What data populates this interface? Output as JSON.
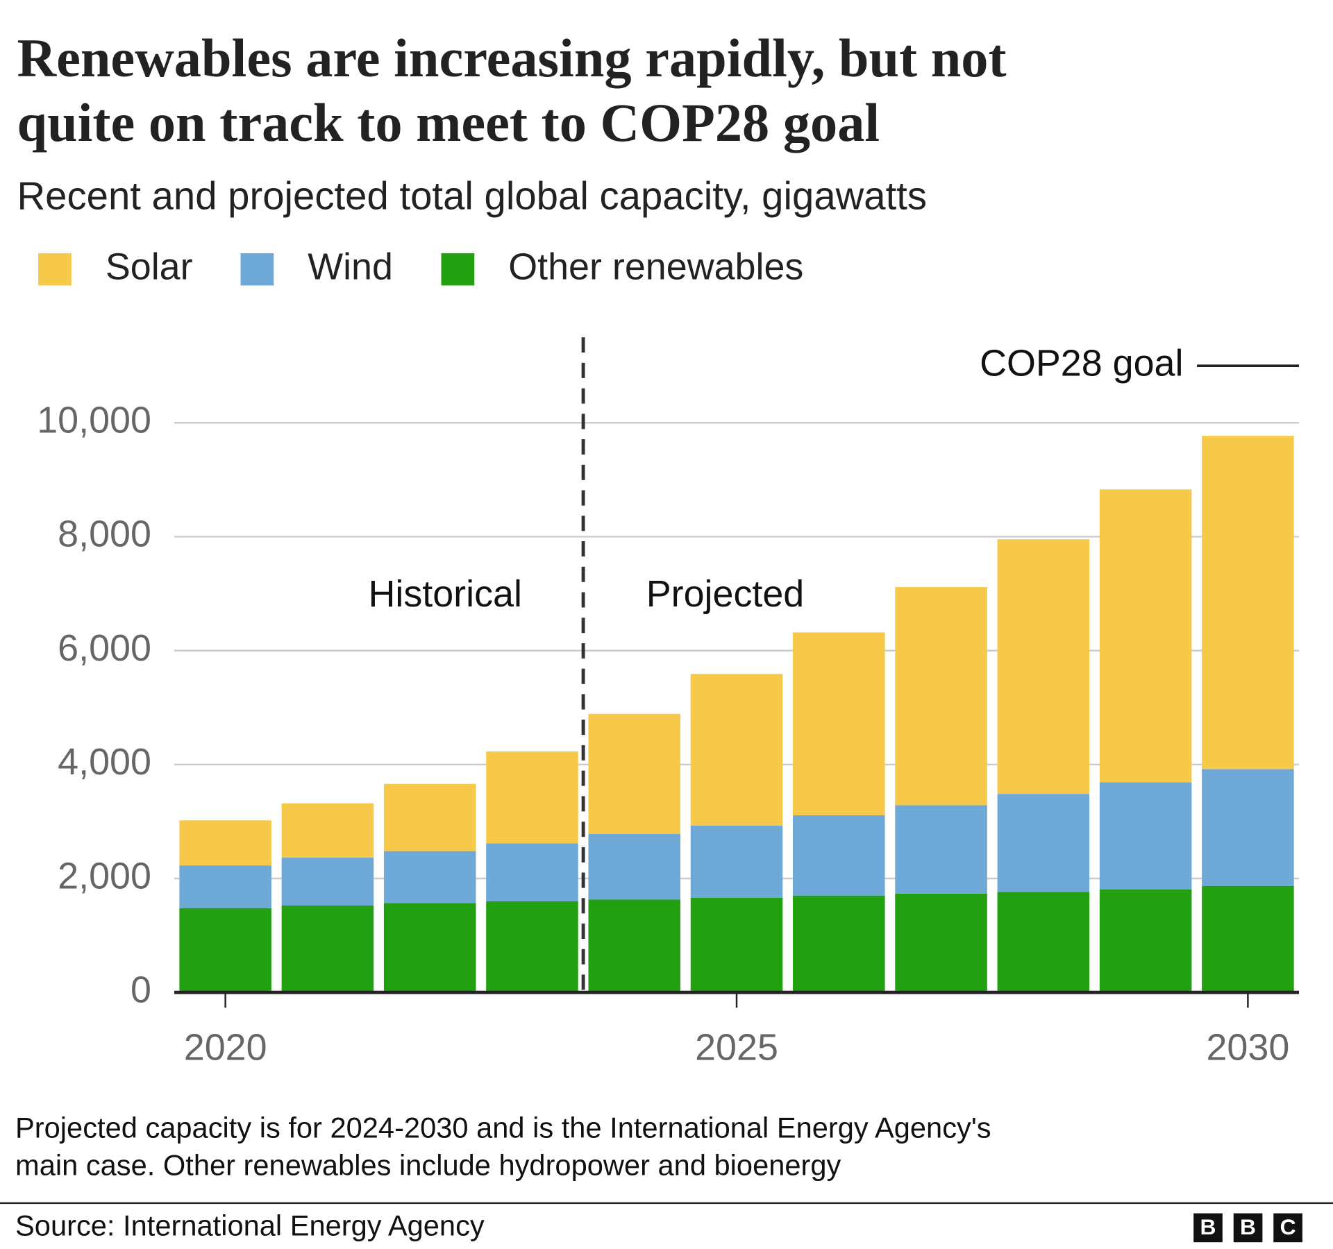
{
  "chart_data": {
    "type": "stacked_bar",
    "title": [
      "Renewables are increasing rapidly, but not",
      "quite on track to meet to COP28 goal"
    ],
    "subtitle": "Recent and projected total global capacity, gigawatts",
    "x": [
      2020,
      2021,
      2022,
      2023,
      2024,
      2025,
      2026,
      2027,
      2028,
      2029,
      2030
    ],
    "xlim": [
      2019.5,
      2030.5
    ],
    "xticks": [
      2020,
      2025,
      2030
    ],
    "ylim": [
      0,
      11500
    ],
    "yticks": [
      0,
      {
        "value": 2000,
        "label": "2,000"
      },
      {
        "value": 4000,
        "label": "4,000"
      },
      {
        "value": 6000,
        "label": "6,000"
      },
      {
        "value": 8000,
        "label": "8,000"
      },
      {
        "value": 10000,
        "label": "10,000"
      }
    ],
    "grid": true,
    "series": [
      {
        "name": "Solar",
        "color": "#f6c94b",
        "values": [
          790,
          955,
          1180,
          1615,
          2110,
          2660,
          3210,
          3830,
          4470,
          5140,
          5850
        ]
      },
      {
        "name": "Wind",
        "color": "#6ea9d8",
        "values": [
          750,
          840,
          910,
          1015,
          1150,
          1270,
          1410,
          1550,
          1720,
          1880,
          2050
        ]
      },
      {
        "name": "Other renewables",
        "color": "#22a011",
        "values": [
          1480,
          1525,
          1570,
          1600,
          1630,
          1660,
          1700,
          1735,
          1765,
          1810,
          1870
        ]
      }
    ],
    "divider": {
      "x": 2023.5,
      "left_label": "Historical",
      "right_label": "Projected"
    },
    "goal": {
      "label": "COP28 goal",
      "value": 11000
    },
    "footnote": [
      "Projected capacity is for 2024-2030 and is the International Energy Agency's",
      "main case. Other renewables include hydropower and bioenergy"
    ],
    "source": "Source: International Energy Agency",
    "logo": [
      "B",
      "B",
      "C"
    ]
  }
}
